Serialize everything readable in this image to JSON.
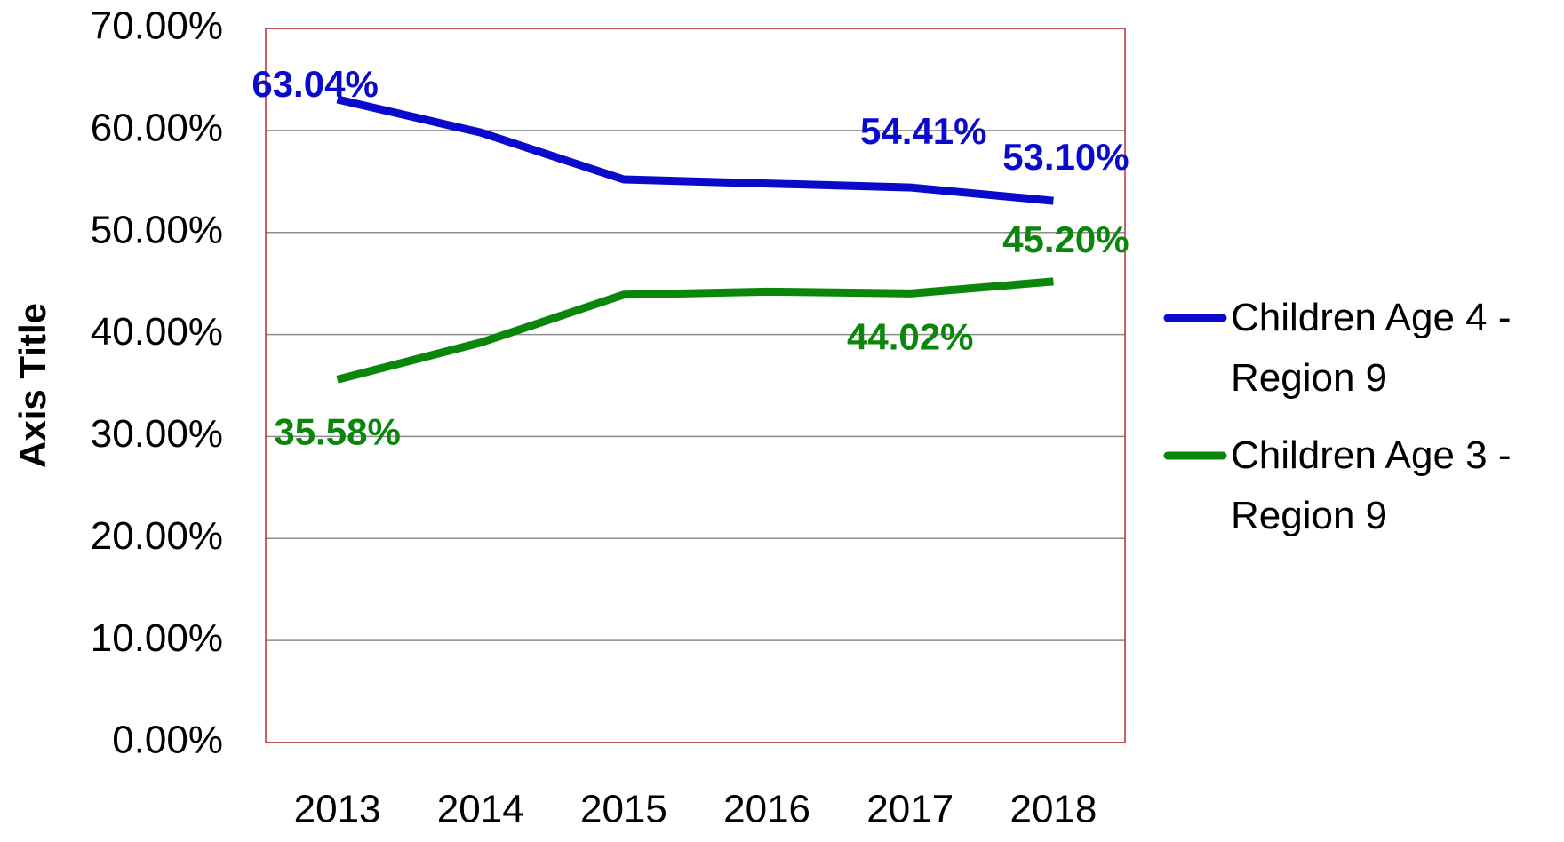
{
  "chart_data": {
    "type": "line",
    "y_axis_title": "Axis Title",
    "categories": [
      "2013",
      "2014",
      "2015",
      "2016",
      "2017",
      "2018"
    ],
    "series": [
      {
        "name": "Children Age 4 - Region 9",
        "color": "#0a0acc",
        "values": [
          63.04,
          59.8,
          55.2,
          54.8,
          54.41,
          53.1
        ],
        "value_labels": [
          "63.04%",
          null,
          null,
          null,
          "54.41%",
          "53.10%"
        ]
      },
      {
        "name": "Children Age 3 - Region 9",
        "color": "#0a870a",
        "values": [
          35.58,
          39.2,
          43.9,
          44.2,
          44.02,
          45.2
        ],
        "value_labels": [
          "35.58%",
          null,
          null,
          null,
          "44.02%",
          "45.20%"
        ]
      }
    ],
    "ylim": [
      0,
      70
    ],
    "yticks": [
      {
        "value": 0,
        "label": "0.00%"
      },
      {
        "value": 10,
        "label": "10.00%"
      },
      {
        "value": 20,
        "label": "20.00%"
      },
      {
        "value": 30,
        "label": "30.00%"
      },
      {
        "value": 40,
        "label": "40.00%"
      },
      {
        "value": 50,
        "label": "50.00%"
      },
      {
        "value": 60,
        "label": "60.00%"
      },
      {
        "value": 70,
        "label": "70.00%"
      }
    ],
    "grid": true,
    "legend": "right"
  }
}
